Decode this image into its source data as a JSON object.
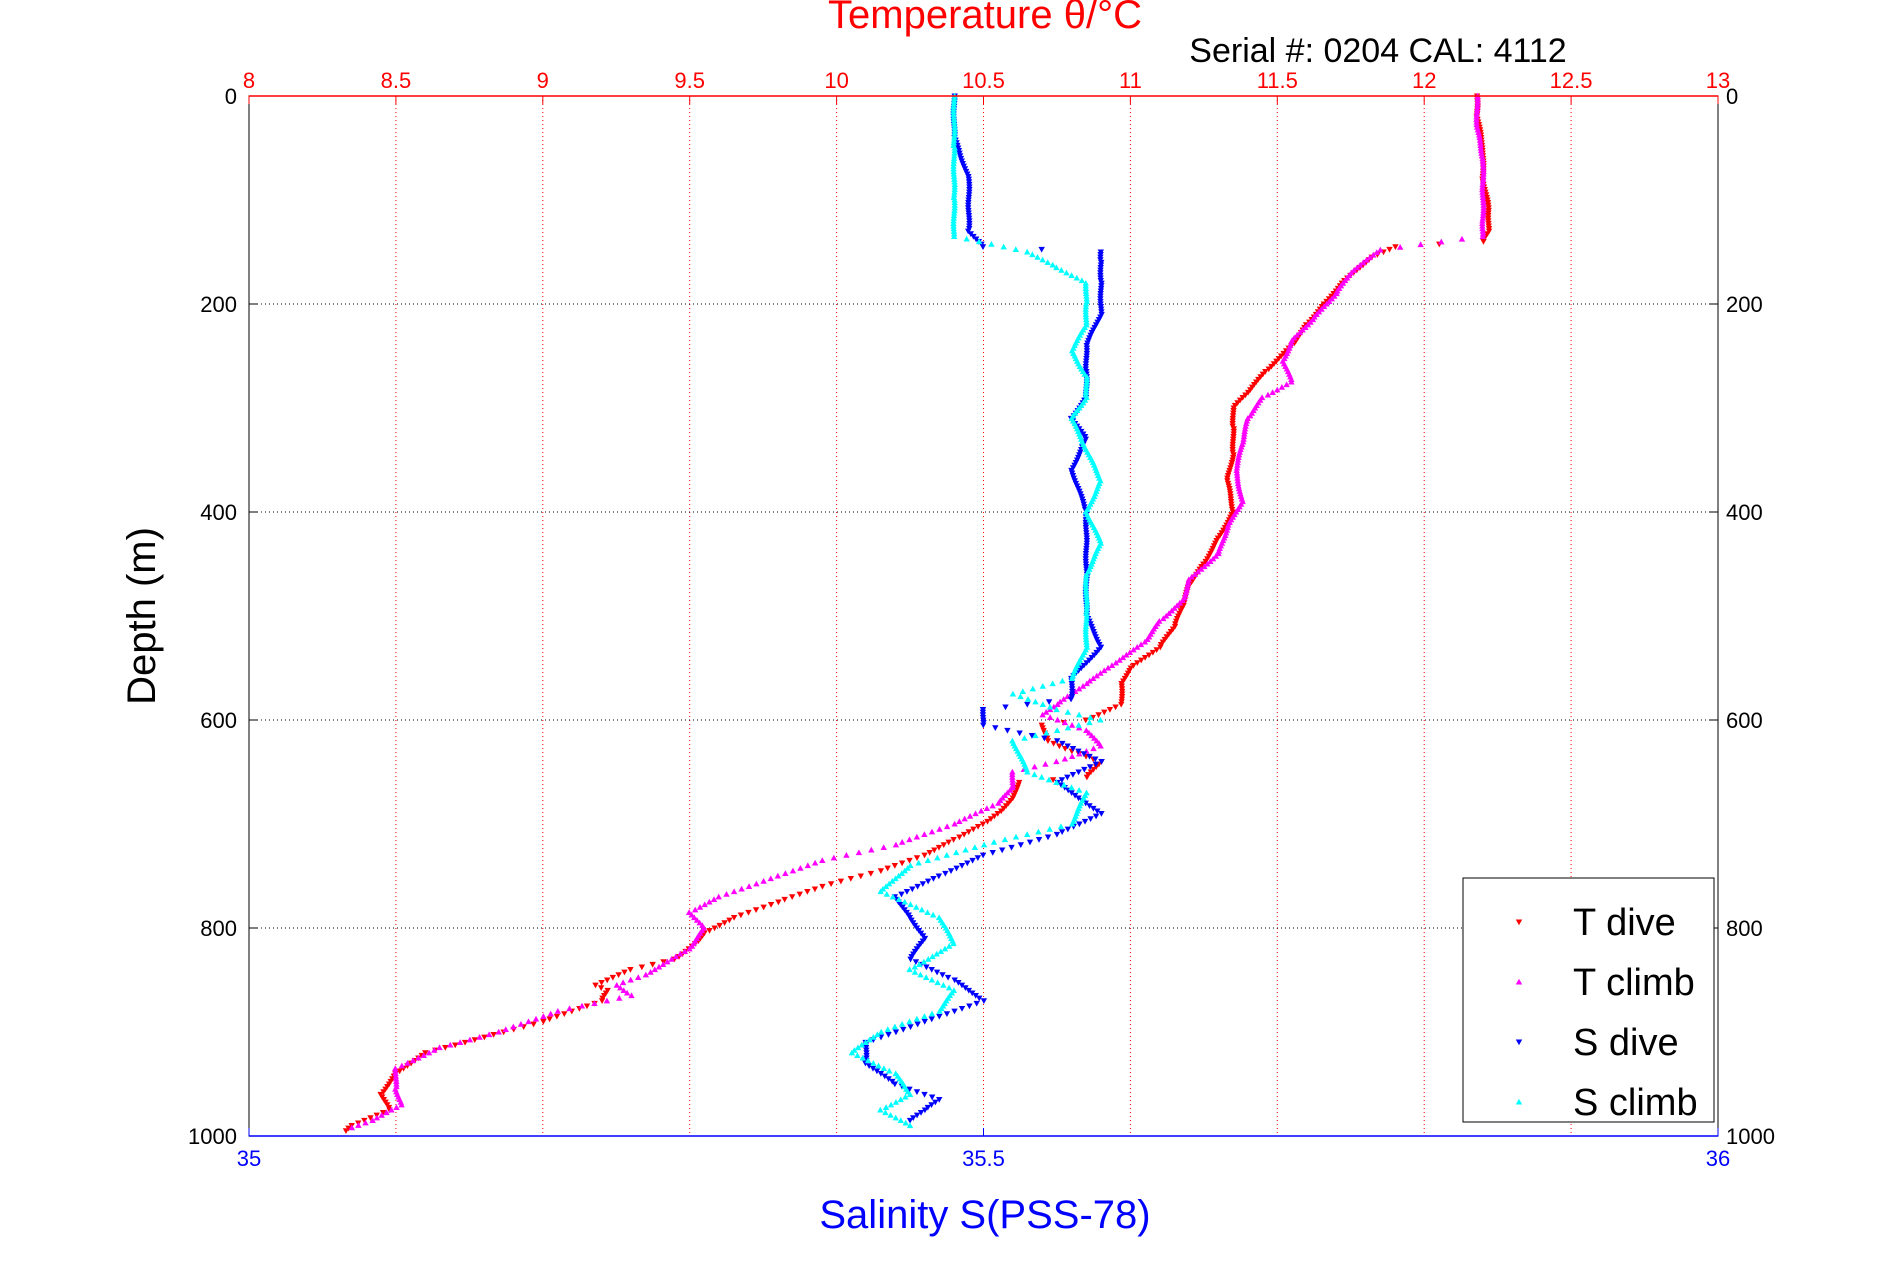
{
  "chart_data": {
    "type": "scatter",
    "title": "Temperature θ/°C",
    "subtitle": "Serial #: 0204  CAL: 4112",
    "ylabel": "Depth (m)",
    "xlabel_bottom": "Salinity S(PSS-78)",
    "ylim": [
      1000,
      0
    ],
    "yticks": [
      "0",
      "200",
      "400",
      "600",
      "800",
      "1000"
    ],
    "top_axis": {
      "label": "Temperature θ/°C",
      "range": [
        8,
        13
      ],
      "ticks": [
        "8",
        "8.5",
        "9",
        "9.5",
        "10",
        "10.5",
        "11",
        "11.5",
        "12",
        "12.5",
        "13"
      ],
      "color": "#ff0000"
    },
    "bottom_axis": {
      "label": "Salinity S(PSS-78)",
      "range": [
        35,
        36
      ],
      "ticks": [
        "35",
        "35.5",
        "36"
      ],
      "color": "#0000ff"
    },
    "grid": true,
    "legend_position": "bottom-right",
    "series": [
      {
        "name": "T dive",
        "axis": "temperature",
        "color": "#ff0000",
        "marker": "triangle-down",
        "points": [
          [
            12.18,
            0
          ],
          [
            12.18,
            20
          ],
          [
            12.2,
            50
          ],
          [
            12.2,
            80
          ],
          [
            12.22,
            110
          ],
          [
            12.22,
            130
          ],
          [
            12.2,
            140
          ],
          [
            11.9,
            145
          ],
          [
            11.82,
            155
          ],
          [
            11.72,
            180
          ],
          [
            11.66,
            200
          ],
          [
            11.6,
            220
          ],
          [
            11.55,
            240
          ],
          [
            11.46,
            265
          ],
          [
            11.4,
            285
          ],
          [
            11.35,
            300
          ],
          [
            11.35,
            320
          ],
          [
            11.35,
            345
          ],
          [
            11.33,
            370
          ],
          [
            11.35,
            400
          ],
          [
            11.3,
            425
          ],
          [
            11.25,
            450
          ],
          [
            11.2,
            470
          ],
          [
            11.18,
            490
          ],
          [
            11.15,
            510
          ],
          [
            11.1,
            530
          ],
          [
            11.0,
            550
          ],
          [
            10.97,
            565
          ],
          [
            10.97,
            585
          ],
          [
            10.85,
            600
          ],
          [
            10.7,
            605
          ],
          [
            10.72,
            620
          ],
          [
            10.8,
            630
          ],
          [
            10.9,
            640
          ],
          [
            10.85,
            655
          ],
          [
            10.62,
            660
          ],
          [
            10.6,
            675
          ],
          [
            10.55,
            690
          ],
          [
            10.5,
            700
          ],
          [
            10.4,
            715
          ],
          [
            10.3,
            730
          ],
          [
            10.15,
            745
          ],
          [
            9.95,
            760
          ],
          [
            9.8,
            775
          ],
          [
            9.65,
            790
          ],
          [
            9.55,
            805
          ],
          [
            9.52,
            815
          ],
          [
            9.45,
            830
          ],
          [
            9.3,
            840
          ],
          [
            9.18,
            855
          ],
          [
            9.22,
            860
          ],
          [
            9.2,
            870
          ],
          [
            9.0,
            890
          ],
          [
            8.8,
            905
          ],
          [
            8.6,
            920
          ],
          [
            8.5,
            940
          ],
          [
            8.45,
            960
          ],
          [
            8.48,
            975
          ],
          [
            8.35,
            990
          ],
          [
            8.33,
            995
          ]
        ]
      },
      {
        "name": "T climb",
        "axis": "temperature",
        "color": "#ff00ff",
        "marker": "triangle-up",
        "points": [
          [
            12.18,
            0
          ],
          [
            12.18,
            30
          ],
          [
            12.2,
            60
          ],
          [
            12.2,
            90
          ],
          [
            12.2,
            120
          ],
          [
            12.2,
            135
          ],
          [
            11.85,
            148
          ],
          [
            11.75,
            170
          ],
          [
            11.7,
            190
          ],
          [
            11.62,
            215
          ],
          [
            11.55,
            235
          ],
          [
            11.52,
            255
          ],
          [
            11.55,
            275
          ],
          [
            11.45,
            290
          ],
          [
            11.4,
            310
          ],
          [
            11.38,
            335
          ],
          [
            11.36,
            360
          ],
          [
            11.38,
            390
          ],
          [
            11.33,
            415
          ],
          [
            11.3,
            440
          ],
          [
            11.2,
            465
          ],
          [
            11.18,
            485
          ],
          [
            11.1,
            505
          ],
          [
            11.05,
            525
          ],
          [
            10.95,
            545
          ],
          [
            10.85,
            565
          ],
          [
            10.75,
            585
          ],
          [
            10.7,
            595
          ],
          [
            10.85,
            610
          ],
          [
            10.9,
            625
          ],
          [
            10.75,
            640
          ],
          [
            10.6,
            650
          ],
          [
            10.6,
            665
          ],
          [
            10.55,
            680
          ],
          [
            10.4,
            700
          ],
          [
            10.2,
            720
          ],
          [
            9.95,
            735
          ],
          [
            9.8,
            750
          ],
          [
            9.6,
            770
          ],
          [
            9.5,
            785
          ],
          [
            9.55,
            800
          ],
          [
            9.5,
            820
          ],
          [
            9.35,
            845
          ],
          [
            9.25,
            855
          ],
          [
            9.3,
            865
          ],
          [
            9.05,
            880
          ],
          [
            8.85,
            900
          ],
          [
            8.65,
            915
          ],
          [
            8.5,
            935
          ],
          [
            8.5,
            955
          ],
          [
            8.52,
            970
          ],
          [
            8.42,
            985
          ],
          [
            8.35,
            992
          ]
        ]
      },
      {
        "name": "S dive",
        "axis": "salinity",
        "color": "#0000ff",
        "marker": "triangle-down",
        "points": [
          [
            35.48,
            0
          ],
          [
            35.48,
            40
          ],
          [
            35.49,
            80
          ],
          [
            35.49,
            110
          ],
          [
            35.49,
            130
          ],
          [
            35.5,
            145
          ],
          [
            35.58,
            150
          ],
          [
            35.58,
            160
          ],
          [
            35.58,
            180
          ],
          [
            35.58,
            210
          ],
          [
            35.57,
            240
          ],
          [
            35.57,
            265
          ],
          [
            35.57,
            290
          ],
          [
            35.56,
            310
          ],
          [
            35.57,
            330
          ],
          [
            35.56,
            360
          ],
          [
            35.57,
            400
          ],
          [
            35.57,
            430
          ],
          [
            35.57,
            460
          ],
          [
            35.57,
            500
          ],
          [
            35.58,
            530
          ],
          [
            35.56,
            560
          ],
          [
            35.56,
            580
          ],
          [
            35.5,
            590
          ],
          [
            35.5,
            605
          ],
          [
            35.55,
            620
          ],
          [
            35.58,
            640
          ],
          [
            35.55,
            660
          ],
          [
            35.58,
            690
          ],
          [
            35.55,
            710
          ],
          [
            35.5,
            730
          ],
          [
            35.47,
            750
          ],
          [
            35.44,
            770
          ],
          [
            35.45,
            790
          ],
          [
            35.46,
            810
          ],
          [
            35.45,
            830
          ],
          [
            35.48,
            850
          ],
          [
            35.5,
            870
          ],
          [
            35.46,
            890
          ],
          [
            35.42,
            910
          ],
          [
            35.42,
            930
          ],
          [
            35.44,
            950
          ],
          [
            35.47,
            965
          ],
          [
            35.46,
            975
          ],
          [
            35.45,
            985
          ]
        ]
      },
      {
        "name": "S climb",
        "axis": "salinity",
        "color": "#00ffff",
        "marker": "triangle-up",
        "points": [
          [
            35.48,
            0
          ],
          [
            35.48,
            50
          ],
          [
            35.48,
            100
          ],
          [
            35.48,
            135
          ],
          [
            35.53,
            150
          ],
          [
            35.55,
            165
          ],
          [
            35.57,
            180
          ],
          [
            35.57,
            200
          ],
          [
            35.57,
            220
          ],
          [
            35.56,
            245
          ],
          [
            35.57,
            270
          ],
          [
            35.57,
            290
          ],
          [
            35.56,
            310
          ],
          [
            35.57,
            340
          ],
          [
            35.58,
            370
          ],
          [
            35.57,
            400
          ],
          [
            35.58,
            430
          ],
          [
            35.57,
            460
          ],
          [
            35.57,
            500
          ],
          [
            35.57,
            530
          ],
          [
            35.56,
            560
          ],
          [
            35.52,
            575
          ],
          [
            35.55,
            590
          ],
          [
            35.58,
            600
          ],
          [
            35.52,
            620
          ],
          [
            35.53,
            650
          ],
          [
            35.57,
            670
          ],
          [
            35.56,
            700
          ],
          [
            35.5,
            720
          ],
          [
            35.45,
            740
          ],
          [
            35.43,
            765
          ],
          [
            35.47,
            790
          ],
          [
            35.48,
            815
          ],
          [
            35.45,
            840
          ],
          [
            35.48,
            860
          ],
          [
            35.47,
            880
          ],
          [
            35.43,
            900
          ],
          [
            35.41,
            920
          ],
          [
            35.44,
            940
          ],
          [
            35.45,
            960
          ],
          [
            35.43,
            975
          ],
          [
            35.45,
            990
          ]
        ]
      }
    ]
  }
}
